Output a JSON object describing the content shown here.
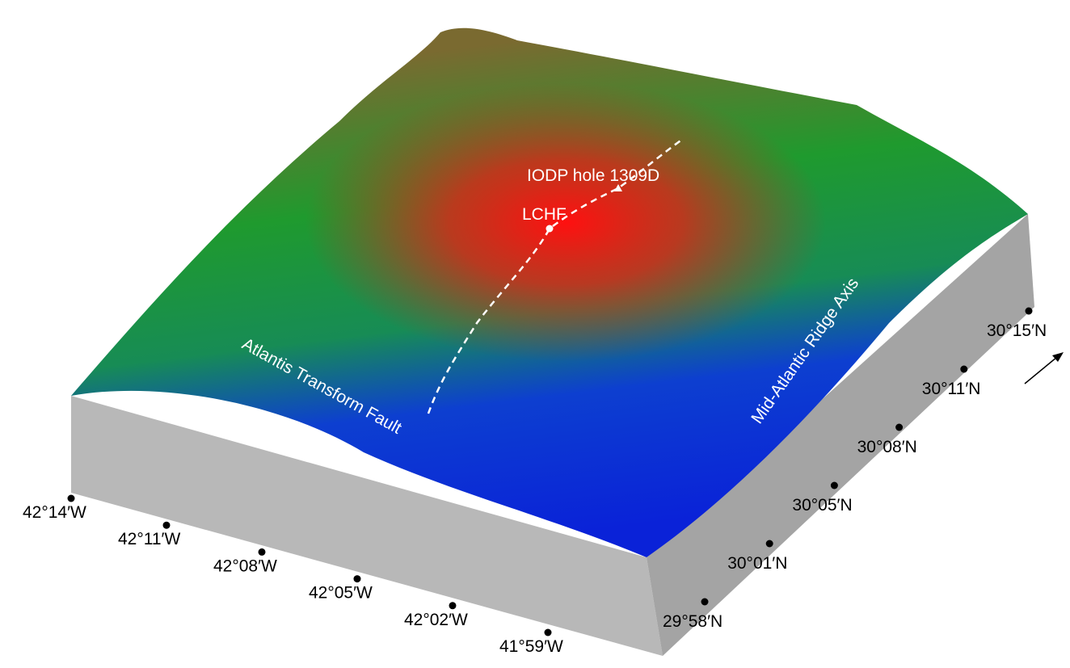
{
  "annotations": {
    "hole": "IODP hole 1309D",
    "field": "LCHF",
    "fault": "Atlantis Transform Fault",
    "ridge": "Mid-Atlantic Ridge Axis"
  },
  "longitude_ticks": [
    "42°14′W",
    "42°11′W",
    "42°08′W",
    "42°05′W",
    "42°02′W",
    "41°59′W"
  ],
  "latitude_ticks": [
    "29°58′N",
    "30°01′N",
    "30°05′N",
    "30°08′N",
    "30°11′N",
    "30°15′N"
  ]
}
